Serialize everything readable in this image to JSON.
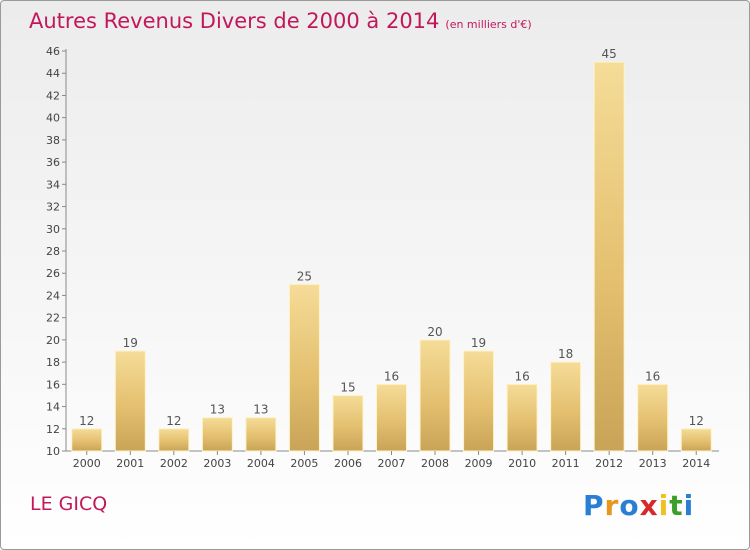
{
  "chart_data": {
    "type": "bar",
    "title": "Autres Revenus Divers de 2000 à 2014",
    "subtitle": "(en milliers d'€)",
    "categories": [
      "2000",
      "2001",
      "2002",
      "2003",
      "2004",
      "2005",
      "2006",
      "2007",
      "2008",
      "2009",
      "2010",
      "2011",
      "2012",
      "2013",
      "2014"
    ],
    "values": [
      12,
      19,
      12,
      13,
      13,
      25,
      15,
      16,
      20,
      19,
      16,
      18,
      45,
      16,
      12
    ],
    "ylim": [
      10,
      46
    ],
    "yticks": [
      10,
      12,
      14,
      16,
      18,
      20,
      22,
      24,
      26,
      28,
      30,
      32,
      34,
      36,
      38,
      40,
      42,
      44,
      46
    ],
    "xlabel": "",
    "ylabel": "",
    "grid": false,
    "bar_color": "#e8c878",
    "label_color": "#555555"
  },
  "footer": {
    "commune": "LE GICQ",
    "logo": {
      "text": "Proxiti",
      "letters": [
        "P",
        "r",
        "o",
        "x",
        "i",
        "t",
        "i"
      ],
      "colors": [
        "#2a7fd4",
        "#e8961e",
        "#2a7fd4",
        "#d42a2a",
        "#f0c020",
        "#3aa02a",
        "#2a7fd4"
      ]
    }
  }
}
